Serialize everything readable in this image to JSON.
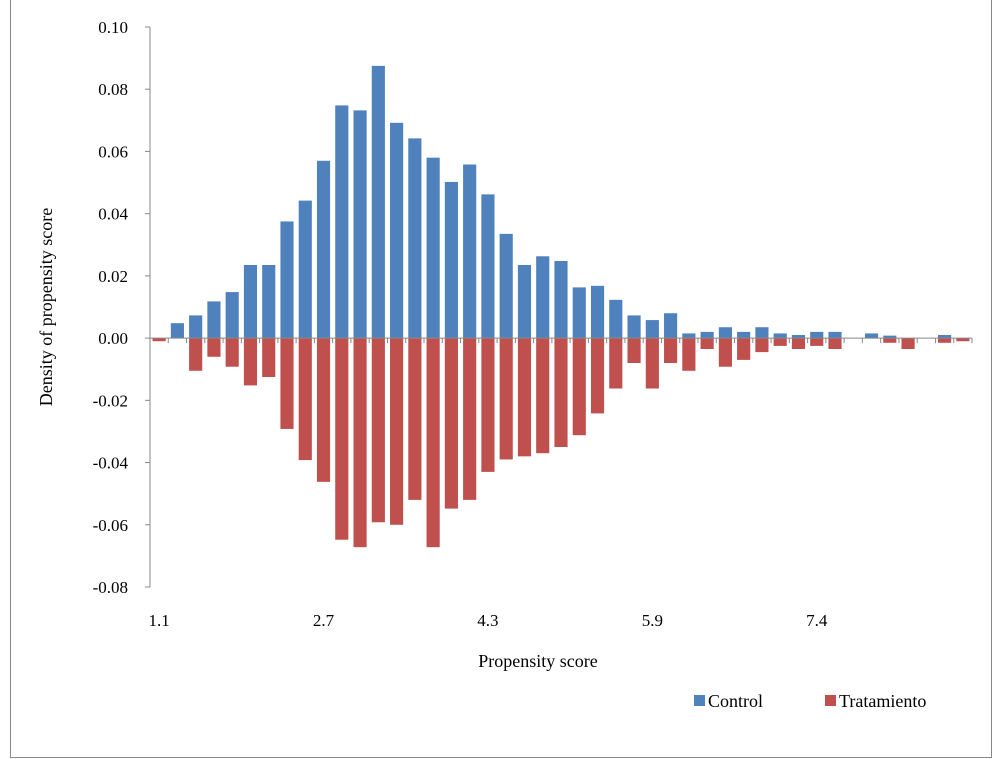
{
  "chart_data": {
    "type": "bar",
    "xlabel": "Propensity score",
    "ylabel": "Density of propensity score",
    "ylim": [
      -0.08,
      0.1
    ],
    "yticks": [
      "0.10",
      "0.08",
      "0.06",
      "0.04",
      "0.02",
      "0.00",
      "-0.02",
      "-0.04",
      "-0.06",
      "-0.08"
    ],
    "ytick_values": [
      0.1,
      0.08,
      0.06,
      0.04,
      0.02,
      0.0,
      -0.02,
      -0.04,
      -0.06,
      -0.08
    ],
    "xtick_labels": [
      "1.1",
      "2.7",
      "4.3",
      "5.9",
      "7.4"
    ],
    "xtick_bins": [
      0,
      9,
      18,
      27,
      36
    ],
    "bin_count": 45,
    "legend_position": "bottom-right",
    "grid": false,
    "series": [
      {
        "name": "Control",
        "color": "#4f81bd",
        "values": [
          0.0,
          0.0048,
          0.0073,
          0.0118,
          0.0148,
          0.0235,
          0.0235,
          0.0375,
          0.0442,
          0.057,
          0.0748,
          0.0732,
          0.0875,
          0.0692,
          0.0642,
          0.058,
          0.0502,
          0.0558,
          0.0462,
          0.0335,
          0.0235,
          0.0263,
          0.0248,
          0.0163,
          0.0168,
          0.0123,
          0.0073,
          0.0058,
          0.008,
          0.0015,
          0.002,
          0.0035,
          0.002,
          0.0035,
          0.0015,
          0.001,
          0.002,
          0.002,
          0.0,
          0.0015,
          0.0008,
          0.0,
          0.0,
          0.001,
          0.0
        ]
      },
      {
        "name": "Tratamiento",
        "color": "#c0504d",
        "values": [
          -0.001,
          0.0,
          -0.0105,
          -0.006,
          -0.0092,
          -0.0152,
          -0.0125,
          -0.0292,
          -0.0392,
          -0.0462,
          -0.0648,
          -0.0672,
          -0.0592,
          -0.06,
          -0.052,
          -0.0672,
          -0.0548,
          -0.052,
          -0.043,
          -0.039,
          -0.038,
          -0.037,
          -0.035,
          -0.0312,
          -0.0242,
          -0.0162,
          -0.008,
          -0.0162,
          -0.008,
          -0.0105,
          -0.0035,
          -0.0092,
          -0.007,
          -0.0045,
          -0.0025,
          -0.0035,
          -0.0025,
          -0.0035,
          0.0,
          0.0,
          -0.0015,
          -0.0035,
          0.0,
          -0.0015,
          -0.001
        ]
      }
    ]
  }
}
